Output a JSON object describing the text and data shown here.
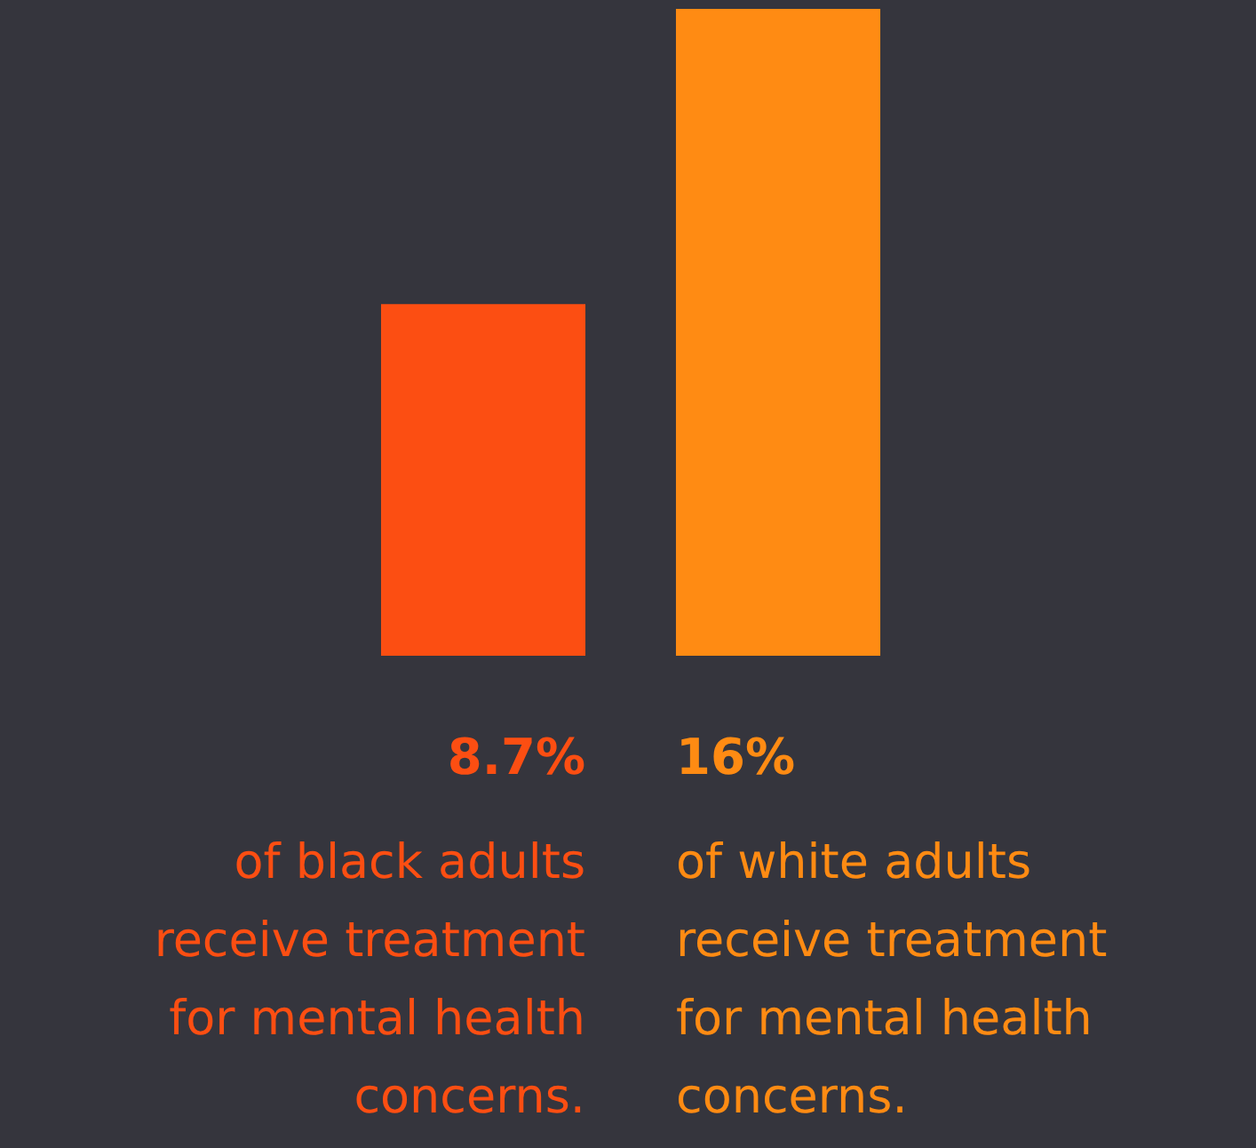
{
  "chart_data": {
    "type": "bar",
    "categories": [
      "of black adults receive treatment for mental health concerns.",
      "of white adults receive treatment for mental health concerns."
    ],
    "values": [
      8.7,
      16
    ],
    "colors": [
      "#fc4e12",
      "#ff8b13"
    ],
    "value_labels": [
      "8.7%",
      "16%"
    ],
    "ylim": [
      0,
      16
    ],
    "tick_labels": false
  }
}
